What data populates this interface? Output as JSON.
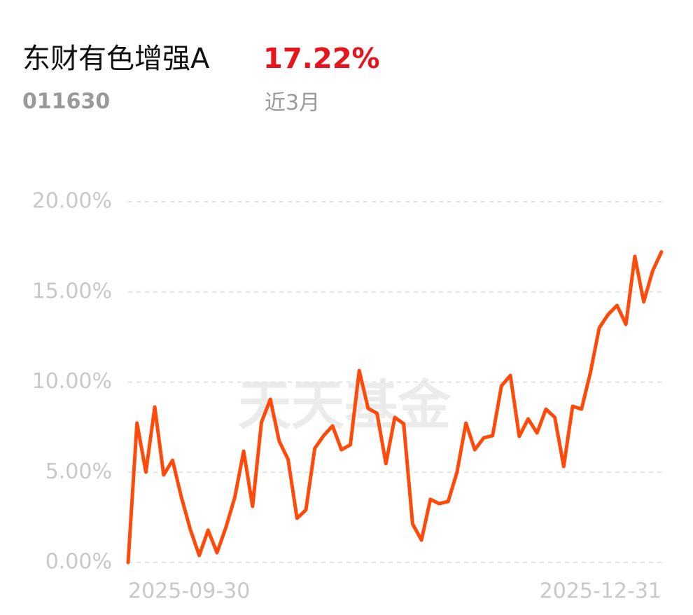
{
  "chart_data": {
    "type": "line",
    "title": "东财有色增强A",
    "change": "17.22%",
    "code": "011630",
    "period": "近3月",
    "watermark": "天天基金",
    "categories": [
      "2025-09-30",
      null,
      null,
      null,
      null,
      null,
      null,
      null,
      null,
      null,
      null,
      null,
      null,
      null,
      null,
      null,
      null,
      null,
      null,
      null,
      null,
      null,
      null,
      null,
      null,
      null,
      null,
      null,
      null,
      null,
      null,
      null,
      null,
      null,
      null,
      null,
      null,
      null,
      null,
      null,
      null,
      null,
      null,
      null,
      null,
      null,
      null,
      null,
      null,
      null,
      null,
      null,
      null,
      null,
      null,
      null,
      null,
      null,
      null,
      null,
      "2025-12-31"
    ],
    "series": [
      {
        "color": "#ff4a0a",
        "values": [
          0,
          7.73,
          5.01,
          8.62,
          4.85,
          5.67,
          3.61,
          1.83,
          0.39,
          1.79,
          0.54,
          1.94,
          3.61,
          6.17,
          3.11,
          7.77,
          9.05,
          6.72,
          5.71,
          2.45,
          2.91,
          6.33,
          7.03,
          7.57,
          6.25,
          6.52,
          10.64,
          8.54,
          8.27,
          5.48,
          8.04,
          7.69,
          2.14,
          1.24,
          3.5,
          3.26,
          3.38,
          5.01,
          7.73,
          6.25,
          6.91,
          7.03,
          9.79,
          10.37,
          6.99,
          7.96,
          7.18,
          8.5,
          8.04,
          5.32,
          8.66,
          8.5,
          10.52,
          13.01,
          13.75,
          14.25,
          13.2,
          16.97,
          14.45,
          16.16,
          17.22
        ]
      }
    ],
    "ylim": [
      0,
      20
    ],
    "yticks": [
      {
        "value": 0,
        "label": "0.00%"
      },
      {
        "value": 5,
        "label": "5.00%"
      },
      {
        "value": 10,
        "label": "10.00%"
      },
      {
        "value": 15,
        "label": "15.00%"
      },
      {
        "value": 20,
        "label": "20.00%"
      }
    ],
    "grid": true
  }
}
